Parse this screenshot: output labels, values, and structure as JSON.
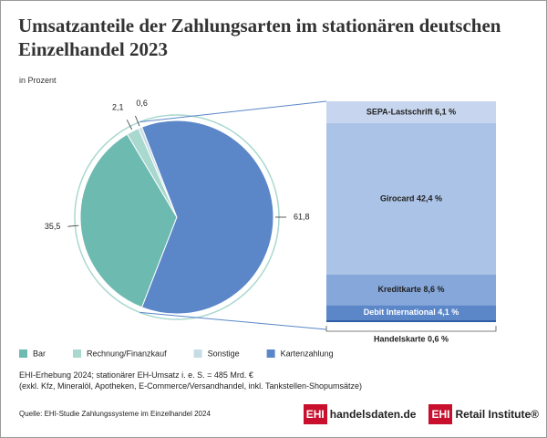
{
  "chart_data": {
    "type": "pie",
    "title": "Umsatzanteile der Zahlungsarten im stationären deutschen Einzelhandel 2023",
    "subtitle": "in Prozent",
    "categories": [
      "Bar",
      "Rechnung/Finanzkauf",
      "Sonstige",
      "Kartenzahlung"
    ],
    "values": [
      35.5,
      2.1,
      0.6,
      61.8
    ],
    "value_labels": [
      "35,5",
      "2,1",
      "0,6",
      "61,8"
    ],
    "colors": [
      "#6cbab0",
      "#a9d8cf",
      "#c6dde4",
      "#5b87c8"
    ],
    "breakdown": {
      "values": [
        6.1,
        42.4,
        8.6,
        4.1,
        0.6
      ],
      "value_labels": [
        "SEPA-Lastschrift 6,1 %",
        "Girocard 42,4 %",
        "Kreditkarte 8,6 %",
        "Debit International 4,1 %",
        "Handelskarte 0,6 %"
      ],
      "colors": [
        "#c7d6ee",
        "#abc3e6",
        "#86a7da",
        "#5b87c8",
        "#2f5ea8"
      ]
    },
    "note": [
      "EHI-Erhebung 2024; stationärer EH-Umsatz i. e. S. = 485 Mrd. €",
      "(exkl. Kfz, Mineralöl, Apotheken, E-Commerce/Versandhandel, inkl. Tankstellen-Shopumsätze)"
    ],
    "source": "Quelle: EHI-Studie Zahlungssysteme im Einzelhandel 2024",
    "logos": [
      {
        "mark": "EHI",
        "text": "handelsdaten.de"
      },
      {
        "mark": "EHI",
        "text": "Retail Institute®"
      }
    ]
  }
}
